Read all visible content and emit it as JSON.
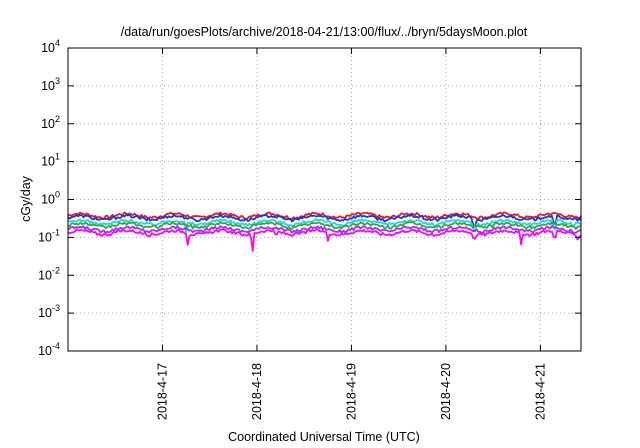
{
  "chart_data": {
    "type": "line",
    "title": "/data/run/goesPlots/archive/2018-04-21/13:00/flux/../bryn/5daysMoon.plot",
    "xlabel": "Coordinated Universal Time (UTC)",
    "ylabel": "cGy/day",
    "yscale": "log",
    "ylim": [
      0.0001,
      10000
    ],
    "xlim_days": [
      0,
      5.43
    ],
    "yticks": [
      {
        "base": "10",
        "exp": "-4",
        "value": 0.0001
      },
      {
        "base": "10",
        "exp": "-3",
        "value": 0.001
      },
      {
        "base": "10",
        "exp": "-2",
        "value": 0.01
      },
      {
        "base": "10",
        "exp": "-1",
        "value": 0.1
      },
      {
        "base": "10",
        "exp": "0",
        "value": 1
      },
      {
        "base": "10",
        "exp": "1",
        "value": 10
      },
      {
        "base": "10",
        "exp": "2",
        "value": 100
      },
      {
        "base": "10",
        "exp": "3",
        "value": 1000
      },
      {
        "base": "10",
        "exp": "4",
        "value": 10000
      }
    ],
    "xticks": [
      {
        "label": "2018-4-17",
        "day": 1
      },
      {
        "label": "2018-4-18",
        "day": 2
      },
      {
        "label": "2018-4-19",
        "day": 3
      },
      {
        "label": "2018-4-20",
        "day": 4
      },
      {
        "label": "2018-4-21",
        "day": 5
      }
    ],
    "grid": true,
    "series": [
      {
        "color": "#e41a1c",
        "level": 0.38,
        "dips": []
      },
      {
        "color": "#2233dd",
        "level": 0.33,
        "dips": [
          [
            4.3,
            0.12
          ],
          [
            5.15,
            0.11
          ]
        ]
      },
      {
        "color": "#22d3e6",
        "level": 0.25,
        "dips": [
          [
            1.25,
            0.13
          ],
          [
            4.3,
            0.1
          ],
          [
            5.15,
            0.1
          ]
        ]
      },
      {
        "color": "#33aa33",
        "level": 0.21,
        "dips": []
      },
      {
        "color": "#9b30ff",
        "level": 0.165,
        "dips": []
      },
      {
        "color": "#ff00ff",
        "level": 0.135,
        "dips": [
          [
            1.27,
            0.06
          ],
          [
            1.95,
            0.03
          ],
          [
            2.2,
            0.1
          ],
          [
            2.75,
            0.08
          ],
          [
            4.3,
            0.07
          ],
          [
            4.8,
            0.06
          ],
          [
            5.15,
            0.06
          ],
          [
            5.4,
            0.08
          ]
        ]
      }
    ]
  }
}
